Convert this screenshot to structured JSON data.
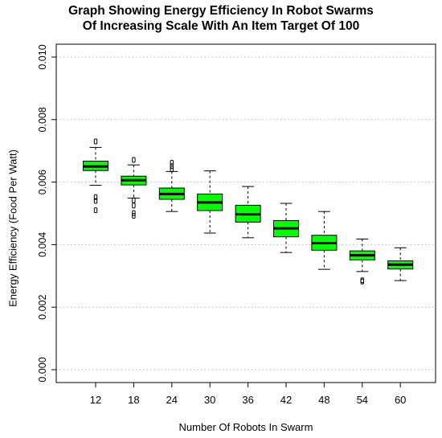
{
  "chart_data": {
    "type": "box",
    "title_lines": [
      "Graph Showing Energy Efficiency In Robot Swarms",
      "Of Increasing Scale With An Item Target Of 100"
    ],
    "xlabel": "Number Of Robots In Swarm",
    "ylabel": "Energy Efficiency (Food Per Watt)",
    "ylim": [
      0.0,
      0.01
    ],
    "yticks": [
      0.0,
      0.002,
      0.004,
      0.006,
      0.008,
      0.01
    ],
    "ytick_labels": [
      "0.000",
      "0.002",
      "0.004",
      "0.006",
      "0.008",
      "0.010"
    ],
    "grid": "horizontal dotted",
    "box_color": "#00ff00",
    "categories": [
      "12",
      "18",
      "24",
      "30",
      "36",
      "42",
      "48",
      "54",
      "60"
    ],
    "boxes": [
      {
        "min": 0.0059,
        "q1": 0.00637,
        "median": 0.0065,
        "q3": 0.00667,
        "max": 0.00711,
        "outliers": [
          0.0073,
          0.00552,
          0.0054,
          0.0051
        ]
      },
      {
        "min": 0.00549,
        "q1": 0.00591,
        "median": 0.00606,
        "q3": 0.00619,
        "max": 0.00655,
        "outliers": [
          0.00671,
          0.00542,
          0.00525,
          0.00501,
          0.00492
        ]
      },
      {
        "min": 0.00506,
        "q1": 0.00545,
        "median": 0.00562,
        "q3": 0.00581,
        "max": 0.00634,
        "outliers": [
          0.00662,
          0.00651,
          0.00641
        ]
      },
      {
        "min": 0.00437,
        "q1": 0.00509,
        "median": 0.00535,
        "q3": 0.00562,
        "max": 0.00636,
        "outliers": []
      },
      {
        "min": 0.00422,
        "q1": 0.00472,
        "median": 0.00497,
        "q3": 0.00526,
        "max": 0.00586,
        "outliers": []
      },
      {
        "min": 0.00375,
        "q1": 0.00425,
        "median": 0.00452,
        "q3": 0.00477,
        "max": 0.00532,
        "outliers": []
      },
      {
        "min": 0.00321,
        "q1": 0.00382,
        "median": 0.00405,
        "q3": 0.0043,
        "max": 0.00506,
        "outliers": []
      },
      {
        "min": 0.00314,
        "q1": 0.00351,
        "median": 0.00366,
        "q3": 0.0038,
        "max": 0.00418,
        "outliers": [
          0.00286,
          0.00282
        ]
      },
      {
        "min": 0.00285,
        "q1": 0.00322,
        "median": 0.00336,
        "q3": 0.00348,
        "max": 0.0039,
        "outliers": []
      }
    ]
  }
}
